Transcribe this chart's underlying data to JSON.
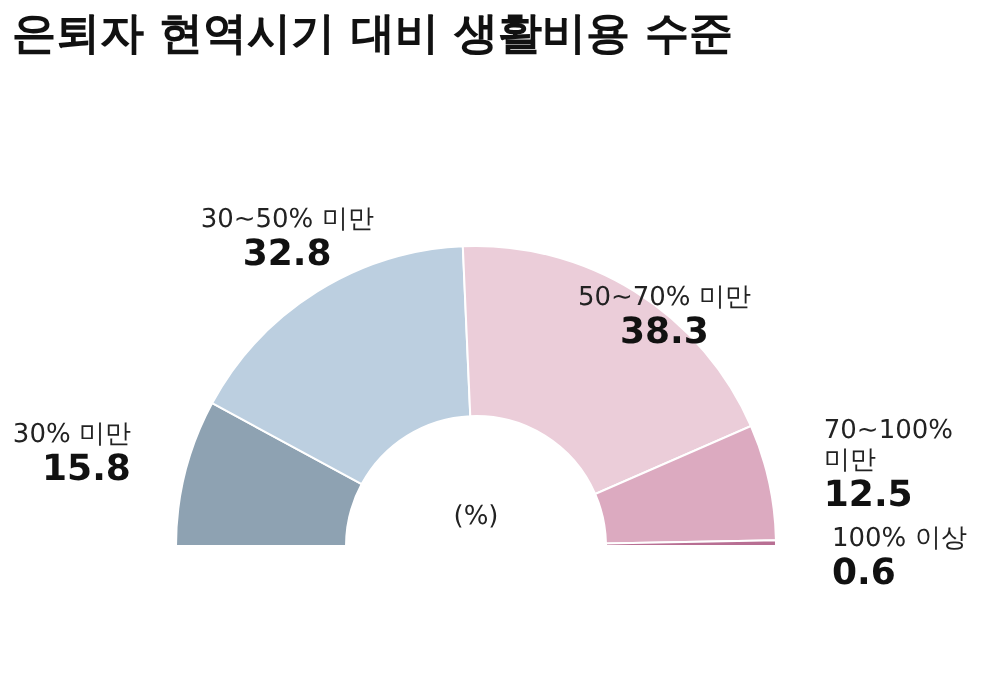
{
  "chart_data": {
    "type": "donut",
    "title": "은퇴자 현역시기 대비 생활비용 수준",
    "categories": [
      "30% 미만",
      "30~50% 미만",
      "50~70% 미만",
      "70~100% 미만",
      "100% 이상"
    ],
    "values": [
      15.8,
      32.8,
      38.3,
      12.5,
      0.6
    ],
    "colors": [
      "#8ea2b2",
      "#bccfe0",
      "#ebcdd9",
      "#dcaac0",
      "#b86f93"
    ],
    "data_labels": true,
    "annotations": [
      "(%)"
    ]
  }
}
